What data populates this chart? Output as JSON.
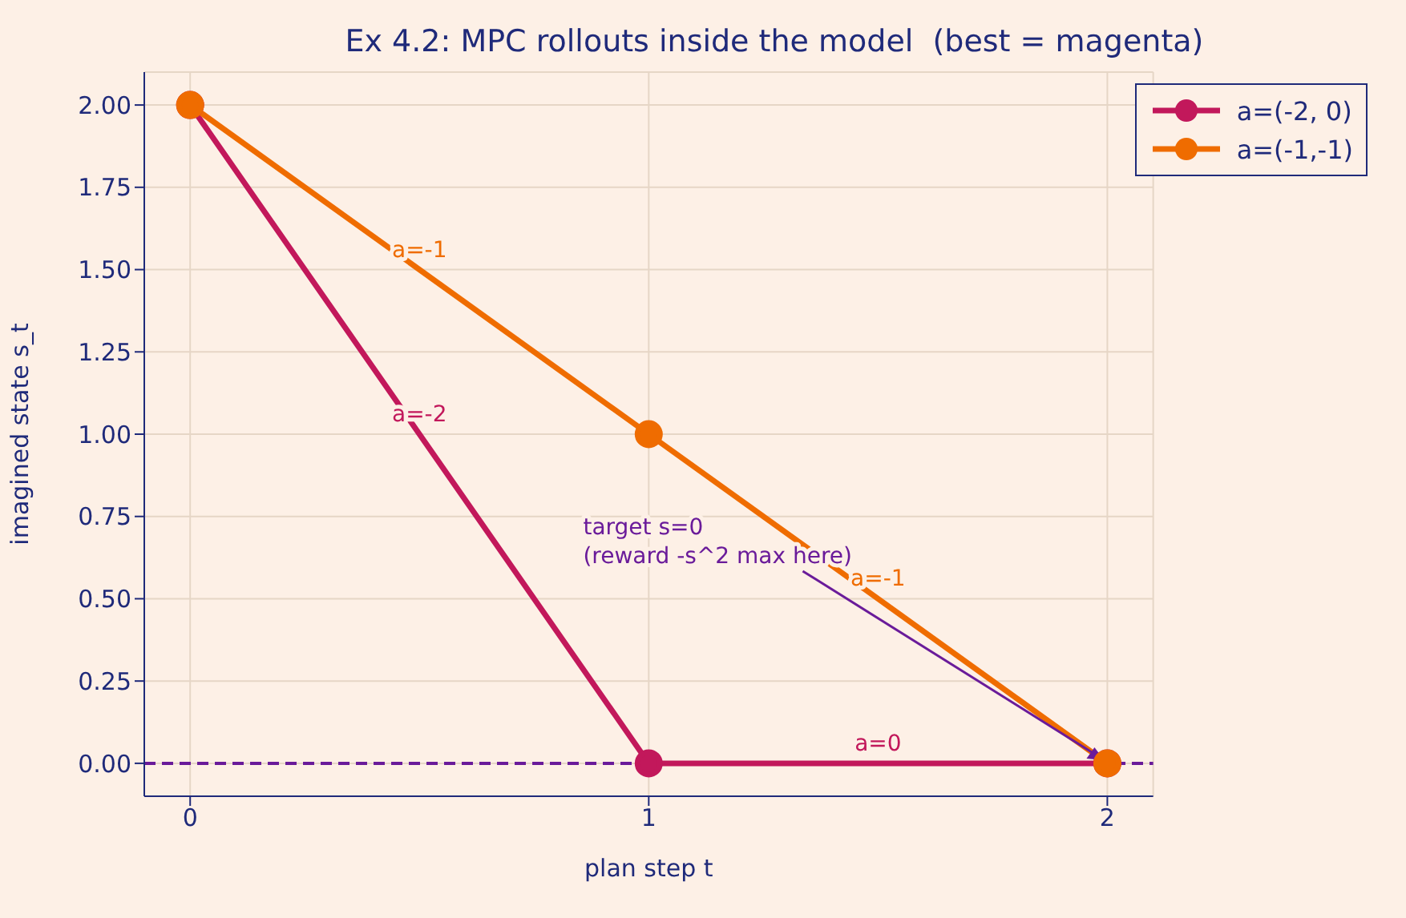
{
  "chart_data": {
    "type": "line",
    "title": "Ex 4.2: MPC rollouts inside the model  (best = magenta)",
    "xlabel": "plan step t",
    "ylabel": "imagined state  s_t",
    "x": [
      0,
      1,
      2
    ],
    "series": [
      {
        "name": "a=(-2, 0)",
        "color": "#c2185b",
        "values": [
          2,
          0,
          0
        ]
      },
      {
        "name": "a=(-1,-1)",
        "color": "#ef6c00",
        "values": [
          2,
          1,
          0
        ]
      }
    ],
    "xlim": [
      -0.1,
      2.1
    ],
    "xticks": [
      0,
      1,
      2
    ],
    "ylim": [
      -0.1,
      2.1
    ],
    "yticks": [
      {
        "value": 0,
        "label": "0.00"
      },
      {
        "value": 0.25,
        "label": "0.25"
      },
      {
        "value": 0.5,
        "label": "0.50"
      },
      {
        "value": 0.75,
        "label": "0.75"
      },
      {
        "value": 1,
        "label": "1.00"
      },
      {
        "value": 1.25,
        "label": "1.25"
      },
      {
        "value": 1.5,
        "label": "1.50"
      },
      {
        "value": 1.75,
        "label": "1.75"
      },
      {
        "value": 2,
        "label": "2.00"
      }
    ],
    "grid": true,
    "legend": "top right",
    "marker": "circle",
    "line_style": "solid",
    "ref_lines": [
      {
        "axis": "y",
        "value": 0,
        "color": "#6a1b9a",
        "line_style": "dashed"
      }
    ],
    "annotations": [
      {
        "text": "a=-1",
        "x": 0.5,
        "y": 1.5
      },
      {
        "text": "a=-2",
        "x": 0.5,
        "y": 1.0
      },
      {
        "text": "a=-1",
        "x": 1.5,
        "y": 0.5
      },
      {
        "text": "a=0",
        "x": 1.5,
        "y": 0
      },
      {
        "text": "target s=0\n(reward -s^2 max here)",
        "x": 2,
        "y": 0
      }
    ]
  }
}
